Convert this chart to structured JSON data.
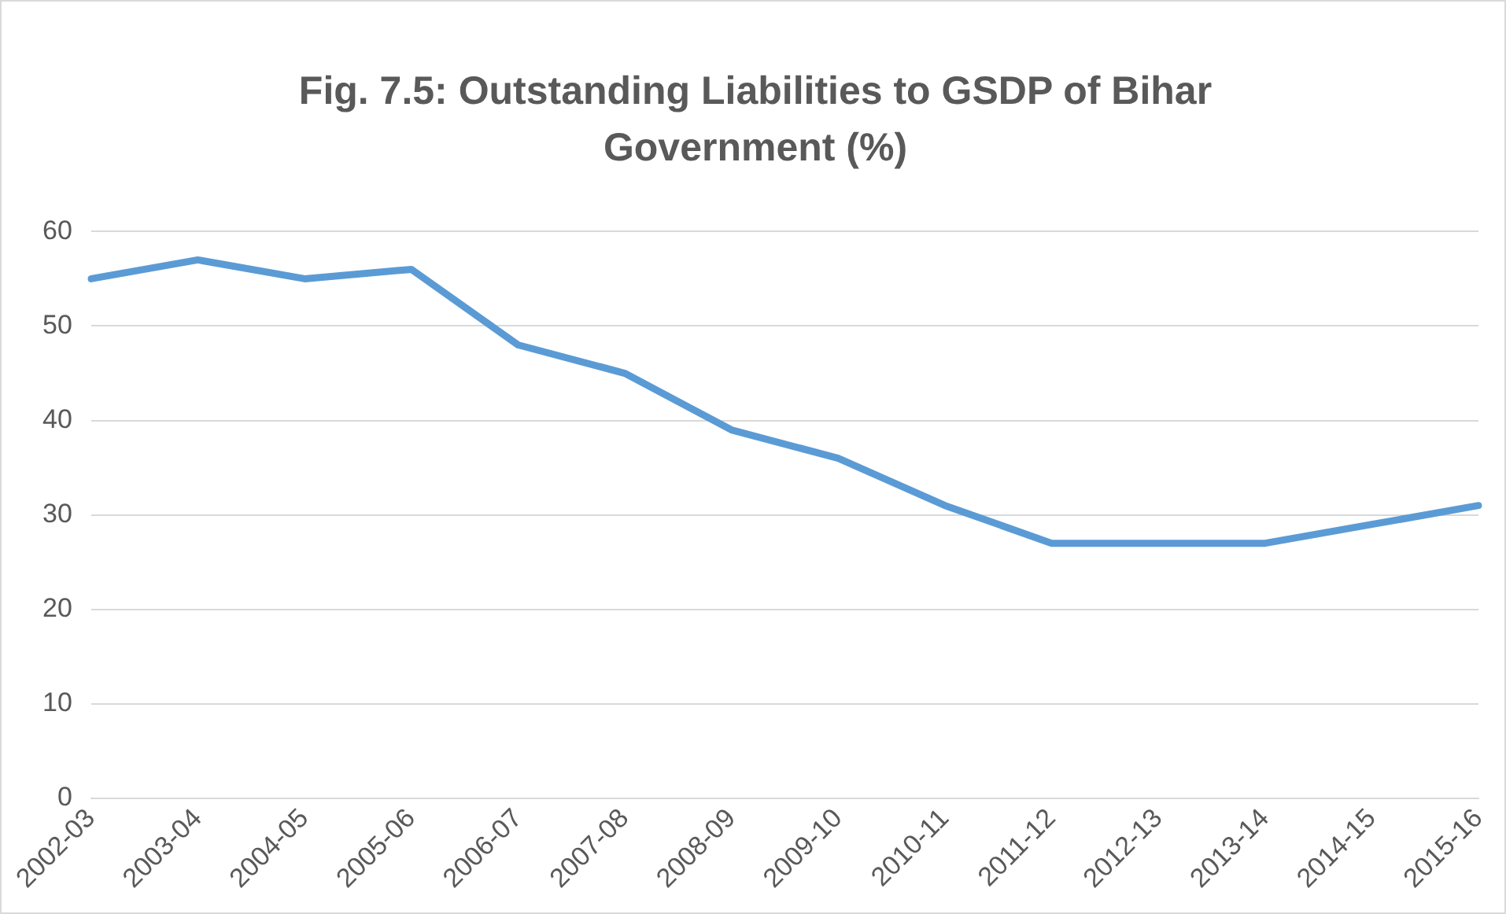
{
  "chart_data": {
    "type": "line",
    "title": "Fig. 7.5: Outstanding Liabilities to GSDP of Bihar Government (%)",
    "categories": [
      "2002-03",
      "2003-04",
      "2004-05",
      "2005-06",
      "2006-07",
      "2007-08",
      "2008-09",
      "2009-10",
      "2010-11",
      "2011-12",
      "2012-13",
      "2013-14",
      "2014-15",
      "2015-16"
    ],
    "series": [
      {
        "color": "#5b9bd5",
        "values": [
          55,
          57,
          55,
          56,
          48,
          45,
          39,
          36,
          31,
          27,
          27,
          27,
          29,
          31
        ]
      }
    ],
    "ylim": [
      0,
      60
    ],
    "yticks": [
      0,
      10,
      20,
      30,
      40,
      50,
      60
    ],
    "grid": "y",
    "legend": false,
    "marker": "none",
    "line_style": "solid"
  }
}
